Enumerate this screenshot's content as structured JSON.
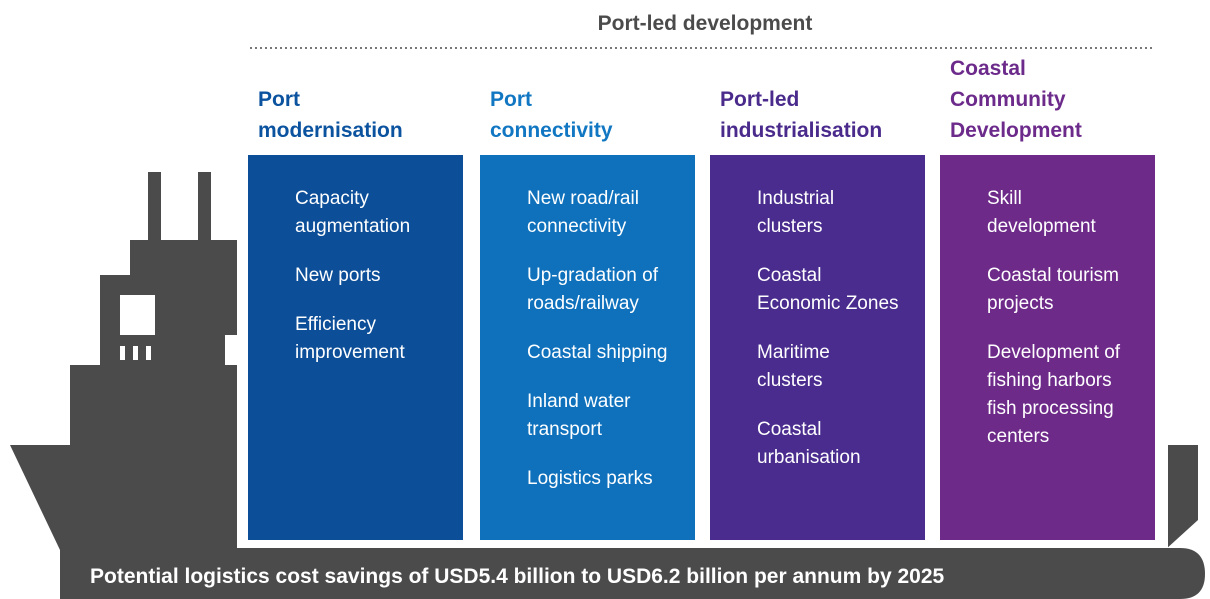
{
  "header": {
    "title": "Port-led development"
  },
  "columns": [
    {
      "heading": [
        "Port",
        "modernisation"
      ],
      "heading_color": "#0b539e",
      "box_color": "#0d4e98",
      "items": [
        [
          "Capacity",
          "augmentation"
        ],
        [
          "New ports"
        ],
        [
          "Efficiency",
          "improvement"
        ]
      ]
    },
    {
      "heading": [
        "Port",
        "connectivity"
      ],
      "heading_color": "#1177c2",
      "box_color": "#0f71bc",
      "items": [
        [
          "New road/rail",
          "connectivity"
        ],
        [
          "Up-gradation of",
          "roads/railway"
        ],
        [
          "Coastal shipping"
        ],
        [
          "Inland water",
          "transport"
        ],
        [
          "Logistics parks"
        ]
      ]
    },
    {
      "heading": [
        "Port-led",
        "industrialisation"
      ],
      "heading_color": "#4a2b8c",
      "box_color": "#4a2c8e",
      "items": [
        [
          "Industrial",
          "clusters"
        ],
        [
          "Coastal",
          "Economic Zones"
        ],
        [
          "Maritime",
          "clusters"
        ],
        [
          "Coastal",
          "urbanisation"
        ]
      ]
    },
    {
      "heading": [
        "Coastal",
        "Community",
        "Development"
      ],
      "heading_color": "#6c2a8b",
      "box_color": "#6d2a89",
      "items": [
        [
          "Skill",
          "development"
        ],
        [
          "Coastal tourism",
          "projects"
        ],
        [
          "Development of",
          "fishing harbors",
          "fish processing",
          "centers"
        ]
      ]
    }
  ],
  "footer": "Potential logistics cost savings of USD5.4 billion to USD6.2 billion per annum by 2025"
}
